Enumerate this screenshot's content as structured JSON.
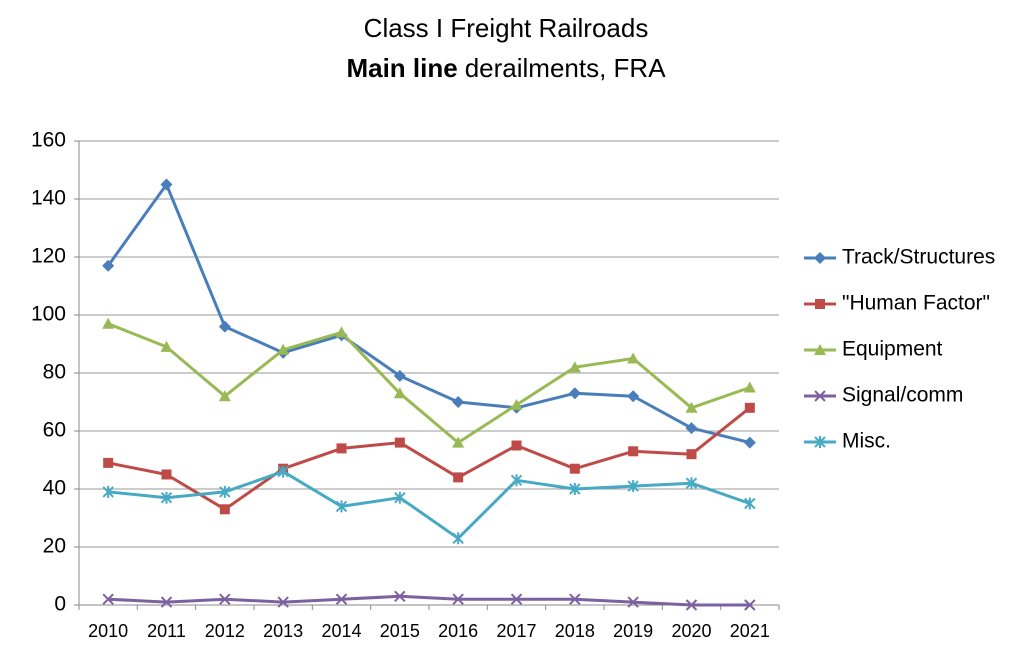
{
  "chart_data": {
    "type": "line",
    "title": "Class I Freight Railroads",
    "subtitle_bold": "Main line",
    "subtitle": "derailments, FRA",
    "categories": [
      "2010",
      "2011",
      "2012",
      "2013",
      "2014",
      "2015",
      "2016",
      "2017",
      "2018",
      "2019",
      "2020",
      "2021"
    ],
    "series": [
      {
        "name": "Track/Structures",
        "color": "#4a7ebb",
        "marker": "diamond",
        "values": [
          117,
          145,
          96,
          87,
          93,
          79,
          70,
          68,
          73,
          72,
          61,
          56
        ]
      },
      {
        "name": "\"Human Factor\"",
        "color": "#be4b48",
        "marker": "square",
        "values": [
          49,
          45,
          33,
          47,
          54,
          56,
          44,
          55,
          47,
          53,
          52,
          68
        ]
      },
      {
        "name": "Equipment",
        "color": "#98b954",
        "marker": "triangle",
        "values": [
          97,
          89,
          72,
          88,
          94,
          73,
          56,
          69,
          82,
          85,
          68,
          75
        ]
      },
      {
        "name": "Signal/comm",
        "color": "#7d60a0",
        "marker": "x",
        "values": [
          2,
          1,
          2,
          1,
          2,
          3,
          2,
          2,
          2,
          1,
          0,
          0
        ]
      },
      {
        "name": "Misc.",
        "color": "#46aac5",
        "marker": "star",
        "values": [
          39,
          37,
          39,
          46,
          34,
          37,
          23,
          43,
          40,
          41,
          42,
          35
        ]
      }
    ],
    "ylim": [
      0,
      160
    ],
    "yticks": [
      0,
      20,
      40,
      60,
      80,
      100,
      120,
      140,
      160
    ],
    "grid": true,
    "legend": "right"
  }
}
